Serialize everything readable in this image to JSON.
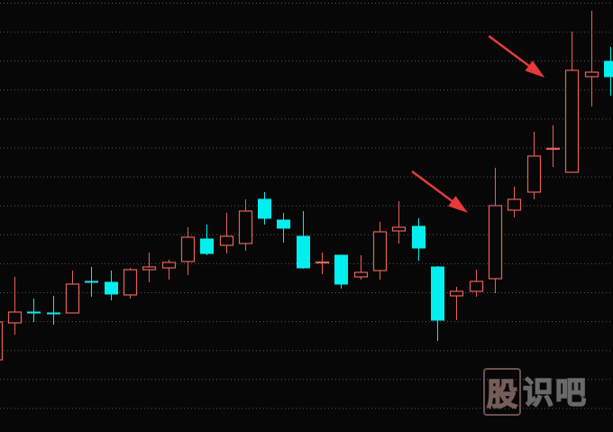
{
  "chart_data": {
    "type": "candlestick",
    "title": "",
    "xlabel": "",
    "ylabel": "",
    "grid": true,
    "grid_style": "dotted horizontal",
    "ylim": [
      0,
      48
    ],
    "colors": {
      "background": "#070707",
      "up": "#e8605a",
      "down": "#00f0f0",
      "grid": "#5a5a5a",
      "arrow": "#e83a3a"
    },
    "candles": [
      {
        "o": 8.1,
        "h": 12.3,
        "l": 8.0,
        "c": 12.3
      },
      {
        "o": 12.2,
        "h": 17.3,
        "l": 10.9,
        "c": 13.4
      },
      {
        "o": 13.4,
        "h": 14.9,
        "l": 12.3,
        "c": 13.35
      },
      {
        "o": 13.3,
        "h": 15.2,
        "l": 12.0,
        "c": 13.2
      },
      {
        "o": 13.3,
        "h": 18.0,
        "l": 13.3,
        "c": 16.5
      },
      {
        "o": 16.8,
        "h": 18.4,
        "l": 15.1,
        "c": 16.75
      },
      {
        "o": 16.7,
        "h": 18.0,
        "l": 14.7,
        "c": 15.4
      },
      {
        "o": 15.3,
        "h": 18.3,
        "l": 14.9,
        "c": 18.1
      },
      {
        "o": 18.1,
        "h": 20.0,
        "l": 16.7,
        "c": 18.4
      },
      {
        "o": 18.3,
        "h": 19.2,
        "l": 17.0,
        "c": 18.9
      },
      {
        "o": 19.0,
        "h": 22.8,
        "l": 17.5,
        "c": 21.7
      },
      {
        "o": 21.5,
        "h": 23.1,
        "l": 19.7,
        "c": 19.9
      },
      {
        "o": 20.8,
        "h": 24.4,
        "l": 19.9,
        "c": 21.8
      },
      {
        "o": 21.0,
        "h": 25.9,
        "l": 20.2,
        "c": 24.6
      },
      {
        "o": 25.9,
        "h": 26.7,
        "l": 23.1,
        "c": 23.8
      },
      {
        "o": 23.6,
        "h": 24.4,
        "l": 21.1,
        "c": 22.7
      },
      {
        "o": 21.8,
        "h": 24.6,
        "l": 18.2,
        "c": 18.3
      },
      {
        "o": 18.9,
        "h": 20.0,
        "l": 17.6,
        "c": 18.95
      },
      {
        "o": 19.7,
        "h": 19.7,
        "l": 16.0,
        "c": 16.5
      },
      {
        "o": 17.3,
        "h": 19.7,
        "l": 17.0,
        "c": 17.8
      },
      {
        "o": 18.0,
        "h": 23.4,
        "l": 17.0,
        "c": 22.3
      },
      {
        "o": 22.4,
        "h": 25.7,
        "l": 21.0,
        "c": 22.8
      },
      {
        "o": 22.9,
        "h": 23.8,
        "l": 19.1,
        "c": 20.5
      },
      {
        "o": 18.4,
        "h": 18.5,
        "l": 10.2,
        "c": 12.5
      },
      {
        "o": 15.2,
        "h": 16.2,
        "l": 12.5,
        "c": 15.7
      },
      {
        "o": 15.7,
        "h": 18.1,
        "l": 15.1,
        "c": 16.8
      },
      {
        "o": 17.1,
        "h": 29.4,
        "l": 15.5,
        "c": 25.2
      },
      {
        "o": 24.7,
        "h": 27.3,
        "l": 23.9,
        "c": 25.9
      },
      {
        "o": 26.7,
        "h": 33.4,
        "l": 25.9,
        "c": 30.7
      },
      {
        "o": 31.5,
        "h": 34.1,
        "l": 29.5,
        "c": 31.55
      },
      {
        "o": 28.9,
        "h": 44.5,
        "l": 28.9,
        "c": 40.2
      },
      {
        "o": 39.5,
        "h": 46.8,
        "l": 36.2,
        "c": 40.0
      },
      {
        "o": 41.2,
        "h": 42.8,
        "l": 37.4,
        "c": 39.5
      }
    ],
    "annotations": [
      {
        "type": "arrow",
        "points_to_candle": 26
      },
      {
        "type": "arrow",
        "points_to_candle": 30
      }
    ]
  },
  "watermark": {
    "chars": [
      "股",
      "识",
      "吧"
    ]
  }
}
